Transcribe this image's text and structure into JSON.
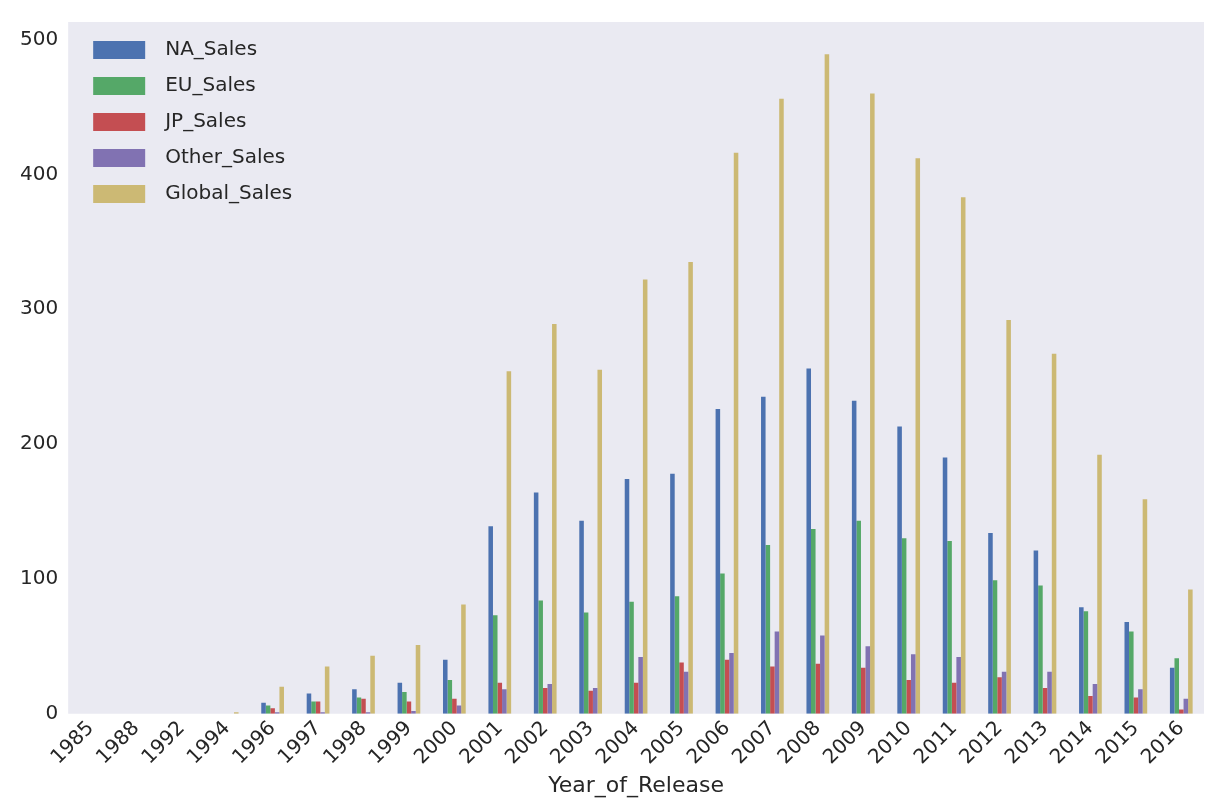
{
  "chart_data": {
    "type": "bar",
    "xlabel": "Year_of_Release",
    "categories": [
      "1985",
      "1988",
      "1992",
      "1994",
      "1996",
      "1997",
      "1998",
      "1999",
      "2000",
      "2001",
      "2002",
      "2003",
      "2004",
      "2005",
      "2006",
      "2007",
      "2008",
      "2009",
      "2010",
      "2011",
      "2012",
      "2013",
      "2014",
      "2015",
      "2016"
    ],
    "series": [
      {
        "name": "NA_Sales",
        "color": "#4c72b0",
        "values": [
          0,
          0,
          0,
          0,
          8,
          15,
          18,
          23,
          40,
          139,
          164,
          143,
          174,
          178,
          226,
          235,
          256,
          232,
          213,
          190,
          134,
          121,
          79,
          68,
          34
        ]
      },
      {
        "name": "EU_Sales",
        "color": "#55a868",
        "values": [
          0,
          0,
          0,
          0,
          6,
          9,
          12,
          16,
          25,
          73,
          84,
          75,
          83,
          87,
          104,
          125,
          137,
          143,
          130,
          128,
          99,
          95,
          76,
          61,
          41
        ]
      },
      {
        "name": "JP_Sales",
        "color": "#c44e52",
        "values": [
          0,
          0,
          0,
          0,
          4,
          9,
          11,
          9,
          11,
          23,
          19,
          17,
          23,
          38,
          40,
          35,
          37,
          34,
          25,
          23,
          27,
          19,
          13,
          12,
          3
        ]
      },
      {
        "name": "Other_Sales",
        "color": "#8172b2",
        "values": [
          0,
          0,
          0,
          0,
          1,
          1,
          1,
          2,
          6,
          18,
          22,
          19,
          42,
          31,
          45,
          61,
          58,
          50,
          44,
          42,
          31,
          31,
          22,
          18,
          11
        ]
      },
      {
        "name": "Global_Sales",
        "color": "#ccb974",
        "values": [
          0,
          0,
          0,
          1,
          20,
          35,
          43,
          51,
          81,
          254,
          289,
          255,
          322,
          335,
          416,
          456,
          489,
          460,
          412,
          383,
          292,
          267,
          192,
          159,
          92
        ]
      }
    ],
    "ylim": [
      0,
      513
    ],
    "yticks": [
      0,
      100,
      200,
      300,
      400,
      500
    ],
    "grid": false,
    "legend": "top left"
  }
}
